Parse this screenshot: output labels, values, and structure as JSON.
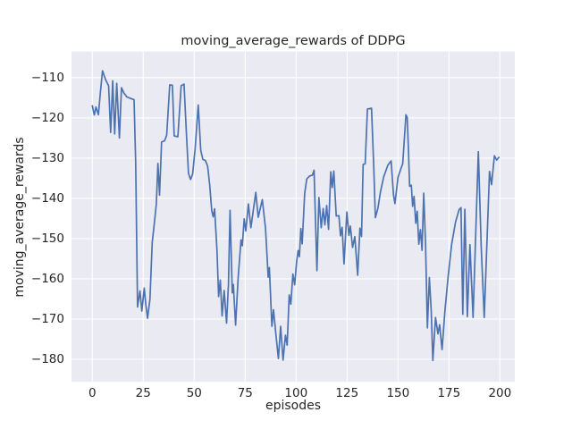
{
  "title": "moving_average_rewards of DDPG",
  "chart_data": {
    "type": "line",
    "title": "moving_average_rewards of DDPG",
    "xlabel": "episodes",
    "ylabel": "moving_average_rewards",
    "x_ticks": [
      0,
      25,
      50,
      75,
      100,
      125,
      150,
      175,
      200
    ],
    "y_ticks": [
      -110,
      -120,
      -130,
      -140,
      -150,
      -160,
      -170,
      -180
    ],
    "xlim": [
      -10.2,
      207.3
    ],
    "ylim": [
      -185.6,
      -103.5
    ],
    "grid": true,
    "legend": false,
    "line_color": "#4c72b0",
    "axes_bg": "#eaeaf2",
    "grid_color": "#ffffff",
    "text_color": "#262626",
    "series": [
      {
        "name": "moving_average_rewards",
        "points": [
          [
            0,
            -117
          ],
          [
            1,
            -119.3
          ],
          [
            1.8,
            -117.3
          ],
          [
            3,
            -119.2
          ],
          [
            4,
            -113.5
          ],
          [
            5,
            -108.3
          ],
          [
            6.5,
            -110.5
          ],
          [
            8,
            -112
          ],
          [
            9,
            -123.6
          ],
          [
            10,
            -110.8
          ],
          [
            11,
            -124
          ],
          [
            12,
            -111.4
          ],
          [
            13.3,
            -125
          ],
          [
            14.3,
            -112.5
          ],
          [
            15.5,
            -113.8
          ],
          [
            17,
            -114.8
          ],
          [
            19,
            -115.2
          ],
          [
            20.5,
            -115.5
          ],
          [
            21.3,
            -131
          ],
          [
            22.2,
            -167
          ],
          [
            23.4,
            -163
          ],
          [
            24.3,
            -168
          ],
          [
            25.5,
            -162.3
          ],
          [
            26.3,
            -166.5
          ],
          [
            27.1,
            -169.8
          ],
          [
            28.3,
            -165
          ],
          [
            29.4,
            -151
          ],
          [
            30.5,
            -146
          ],
          [
            31.4,
            -141.4
          ],
          [
            32.2,
            -131.3
          ],
          [
            33,
            -139.2
          ],
          [
            34,
            -126
          ],
          [
            35.5,
            -125.7
          ],
          [
            36.5,
            -124.3
          ],
          [
            38,
            -111.8
          ],
          [
            39.3,
            -111.9
          ],
          [
            40.2,
            -124.5
          ],
          [
            42,
            -124.7
          ],
          [
            43.6,
            -112
          ],
          [
            45,
            -111.6
          ],
          [
            46.2,
            -124
          ],
          [
            47.2,
            -133.8
          ],
          [
            48.2,
            -135.3
          ],
          [
            49.2,
            -134
          ],
          [
            50.5,
            -127.5
          ],
          [
            52,
            -116.8
          ],
          [
            53.2,
            -128
          ],
          [
            54.2,
            -130.3
          ],
          [
            55.5,
            -130.6
          ],
          [
            56.6,
            -132
          ],
          [
            57.6,
            -136.6
          ],
          [
            58.6,
            -143
          ],
          [
            59.3,
            -144.6
          ],
          [
            60,
            -142.6
          ],
          [
            61.2,
            -153
          ],
          [
            62,
            -164.4
          ],
          [
            62.8,
            -160.3
          ],
          [
            63.7,
            -169.2
          ],
          [
            64.7,
            -162.9
          ],
          [
            65.9,
            -171
          ],
          [
            66.8,
            -161.4
          ],
          [
            67.6,
            -143
          ],
          [
            68.7,
            -163.5
          ],
          [
            69.2,
            -161.4
          ],
          [
            70.3,
            -171.5
          ],
          [
            71.6,
            -159.6
          ],
          [
            73,
            -150.3
          ],
          [
            73.6,
            -151.8
          ],
          [
            74.5,
            -145.1
          ],
          [
            75.3,
            -148.1
          ],
          [
            76.6,
            -141.4
          ],
          [
            77.8,
            -147.3
          ],
          [
            80.2,
            -138.5
          ],
          [
            81.4,
            -144.7
          ],
          [
            83.4,
            -140.3
          ],
          [
            85,
            -147.5
          ],
          [
            86.3,
            -159.6
          ],
          [
            86.9,
            -157.2
          ],
          [
            88.1,
            -171.8
          ],
          [
            88.9,
            -167.7
          ],
          [
            90.2,
            -174.5
          ],
          [
            91.3,
            -179.8
          ],
          [
            92.4,
            -171.8
          ],
          [
            93.6,
            -180.2
          ],
          [
            94.8,
            -174
          ],
          [
            95.6,
            -176.5
          ],
          [
            96.6,
            -164
          ],
          [
            97.4,
            -166.3
          ],
          [
            98.4,
            -158.8
          ],
          [
            99.3,
            -161.5
          ],
          [
            100.3,
            -155.5
          ],
          [
            101,
            -153
          ],
          [
            101.6,
            -154.5
          ],
          [
            102.3,
            -147.5
          ],
          [
            103,
            -151.3
          ],
          [
            104.2,
            -138.8
          ],
          [
            105.2,
            -135.2
          ],
          [
            106.5,
            -134.5
          ],
          [
            108,
            -134.2
          ],
          [
            108.8,
            -133
          ],
          [
            110.2,
            -158
          ],
          [
            111.2,
            -139.8
          ],
          [
            112.3,
            -147.3
          ],
          [
            113.3,
            -142.5
          ],
          [
            114.1,
            -146.6
          ],
          [
            115,
            -141.8
          ],
          [
            115.9,
            -147.7
          ],
          [
            117,
            -133.4
          ],
          [
            117.7,
            -137.3
          ],
          [
            118.5,
            -133.2
          ],
          [
            119.7,
            -144.4
          ],
          [
            121,
            -144.3
          ],
          [
            121.8,
            -149.3
          ],
          [
            122.6,
            -147.2
          ],
          [
            123.5,
            -156.3
          ],
          [
            124.9,
            -143.4
          ],
          [
            125.9,
            -149.2
          ],
          [
            126.6,
            -146.9
          ],
          [
            127.7,
            -152.2
          ],
          [
            128.8,
            -149.5
          ],
          [
            130.2,
            -159.1
          ],
          [
            131.3,
            -147.4
          ],
          [
            132.1,
            -149.5
          ],
          [
            132.9,
            -131.6
          ],
          [
            133.9,
            -131.4
          ],
          [
            135,
            -117.8
          ],
          [
            137,
            -117.6
          ],
          [
            138.1,
            -132.2
          ],
          [
            138.9,
            -144.8
          ],
          [
            140.1,
            -142.5
          ],
          [
            141.4,
            -138.4
          ],
          [
            143,
            -134.6
          ],
          [
            145,
            -131.8
          ],
          [
            146.6,
            -130.7
          ],
          [
            147.8,
            -139.2
          ],
          [
            148.5,
            -141.3
          ],
          [
            150,
            -134.8
          ],
          [
            151.3,
            -132.8
          ],
          [
            152.3,
            -131.4
          ],
          [
            153.9,
            -119.2
          ],
          [
            154.5,
            -119.9
          ],
          [
            155.1,
            -127.8
          ],
          [
            155.7,
            -137
          ],
          [
            156.5,
            -136.7
          ],
          [
            157.2,
            -142
          ],
          [
            157.9,
            -139.5
          ],
          [
            158.7,
            -146.2
          ],
          [
            159.4,
            -143.2
          ],
          [
            160.2,
            -151.4
          ],
          [
            161,
            -147.8
          ],
          [
            161.8,
            -152.9
          ],
          [
            162.6,
            -138.7
          ],
          [
            163.5,
            -151
          ],
          [
            164.4,
            -172.2
          ],
          [
            165.4,
            -159.7
          ],
          [
            166.3,
            -168
          ],
          [
            167.1,
            -180.3
          ],
          [
            168.4,
            -169.6
          ],
          [
            169.6,
            -173.7
          ],
          [
            170.4,
            -171.4
          ],
          [
            171.6,
            -177.6
          ],
          [
            173,
            -168
          ],
          [
            174.6,
            -159.5
          ],
          [
            176.3,
            -151.5
          ],
          [
            178.2,
            -146
          ],
          [
            180,
            -142.8
          ],
          [
            180.9,
            -142.3
          ],
          [
            181.8,
            -168.8
          ],
          [
            182.8,
            -142.7
          ],
          [
            184,
            -169.4
          ],
          [
            185.3,
            -151.5
          ],
          [
            186.8,
            -169.6
          ],
          [
            189.4,
            -128.4
          ],
          [
            190.8,
            -152
          ],
          [
            192.3,
            -169.6
          ],
          [
            194.9,
            -133.3
          ],
          [
            195.9,
            -136.6
          ],
          [
            197.3,
            -129.4
          ],
          [
            198.4,
            -130.5
          ],
          [
            199.5,
            -129.8
          ]
        ]
      }
    ]
  }
}
